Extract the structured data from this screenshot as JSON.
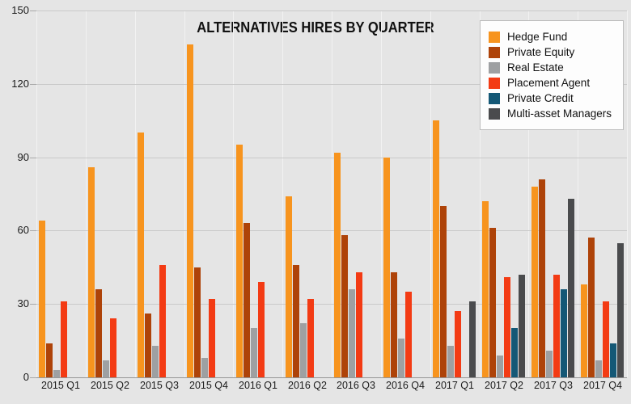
{
  "title": "ALTERNATIVES HIRES BY QUARTER",
  "colors": {
    "background": "#E5E5E5",
    "hgrid": "#C9C9C9",
    "vgrid": "#F2F2F2",
    "axis": "#979797",
    "text": "#1A1A1A",
    "legend_bg": "#FDFDFD",
    "legend_border": "#BDBDBD"
  },
  "chart_data": {
    "type": "bar",
    "title": "ALTERNATIVES HIRES BY QUARTER",
    "xlabel": "",
    "ylabel": "",
    "ylim": [
      0,
      150
    ],
    "yticks": [
      0,
      30,
      60,
      90,
      120,
      150
    ],
    "grid": true,
    "legend_position": "top-right",
    "categories": [
      "2015 Q1",
      "2015 Q2",
      "2015 Q3",
      "2015 Q4",
      "2016 Q1",
      "2016 Q2",
      "2016 Q3",
      "2016 Q4",
      "2017 Q1",
      "2017 Q2",
      "2017 Q3",
      "2017 Q4"
    ],
    "series": [
      {
        "name": "Hedge Fund",
        "color": "#F7941E",
        "values": [
          64,
          86,
          100,
          136,
          95,
          74,
          92,
          90,
          105,
          72,
          78,
          38
        ]
      },
      {
        "name": "Private Equity",
        "color": "#AE4309",
        "values": [
          14,
          36,
          26,
          45,
          63,
          46,
          58,
          43,
          70,
          61,
          81,
          57
        ]
      },
      {
        "name": "Real Estate",
        "color": "#9EA0A2",
        "values": [
          3,
          7,
          13,
          8,
          20,
          22,
          36,
          16,
          13,
          9,
          11,
          7
        ]
      },
      {
        "name": "Placement Agent",
        "color": "#F33B14",
        "values": [
          31,
          24,
          46,
          32,
          39,
          32,
          43,
          35,
          27,
          41,
          42,
          31
        ]
      },
      {
        "name": "Private Credit",
        "color": "#145876",
        "values": [
          null,
          null,
          null,
          null,
          null,
          null,
          null,
          null,
          null,
          20,
          36,
          14
        ]
      },
      {
        "name": "Multi-asset Managers",
        "color": "#4A4B4D",
        "values": [
          null,
          null,
          null,
          null,
          null,
          null,
          null,
          null,
          31,
          42,
          73,
          55
        ]
      }
    ]
  }
}
